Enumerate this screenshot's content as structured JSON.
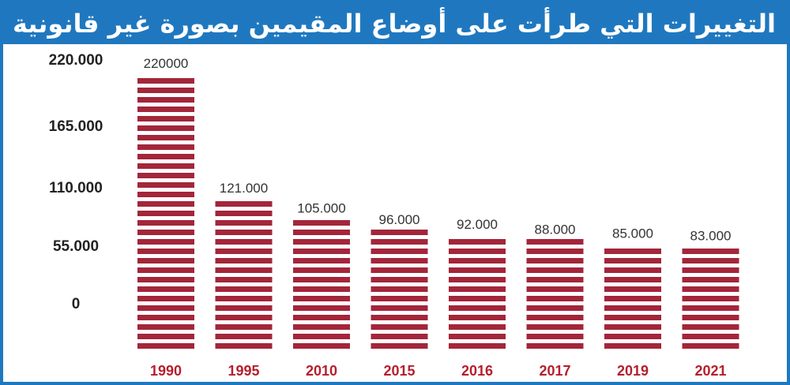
{
  "title": "التغييرات التي طرأت على أوضاع المقيمين بصورة غير قانونية",
  "colors": {
    "header": "#1f78bf",
    "bar": "#a3263a",
    "year_label": "#b51f2e",
    "value_label": "#333333",
    "axis_label": "#222222"
  },
  "chart_data": {
    "type": "bar",
    "categories": [
      "1990",
      "1995",
      "2010",
      "2015",
      "2016",
      "2017",
      "2019",
      "2021"
    ],
    "series": [
      {
        "values": [
          220000,
          121000,
          105000,
          96000,
          92000,
          88000,
          85000,
          83000
        ]
      }
    ],
    "value_labels": [
      "220000",
      "121.000",
      "105.000",
      "96.000",
      "92.000",
      "88.000",
      "85.000",
      "83.000"
    ],
    "y_tick_labels": [
      "220.000",
      "165.000",
      "110.000",
      "55.000",
      "0"
    ],
    "title": "التغييرات التي طرأت على أوضاع المقيمين بصورة غير قانونية",
    "xlabel": "",
    "ylabel": "",
    "grid": false,
    "legend": "none"
  }
}
